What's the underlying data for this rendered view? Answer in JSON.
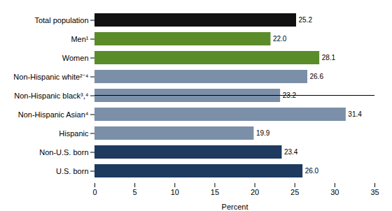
{
  "chart_data": {
    "type": "bar",
    "orientation": "horizontal",
    "categories": [
      "Total population",
      "Men¹",
      "Women",
      "Non-Hispanic white²⁻⁴",
      "Non-Hispanic black³,⁴",
      "Non-Hispanic Asian⁴",
      "Hispanic",
      "Non-U.S. born",
      "U.S. born"
    ],
    "values": [
      25.2,
      22.0,
      28.1,
      26.6,
      23.2,
      31.4,
      19.9,
      23.4,
      26.0
    ],
    "value_labels": [
      "25.2",
      "22.0",
      "28.1",
      "26.6",
      "23.2",
      "31.4",
      "19.9",
      "23.4",
      "26.0"
    ],
    "colors": [
      "#111111",
      "#5b8c2a",
      "#5b8c2a",
      "#7b8fa8",
      "#7b8fa8",
      "#7b8fa8",
      "#7b8fa8",
      "#1e3a5f",
      "#1e3a5f"
    ],
    "xlim": [
      0,
      35
    ],
    "xticks": [
      0,
      5,
      10,
      15,
      20,
      25,
      30,
      35
    ],
    "xlabel": "Percent",
    "data_labels": true
  }
}
